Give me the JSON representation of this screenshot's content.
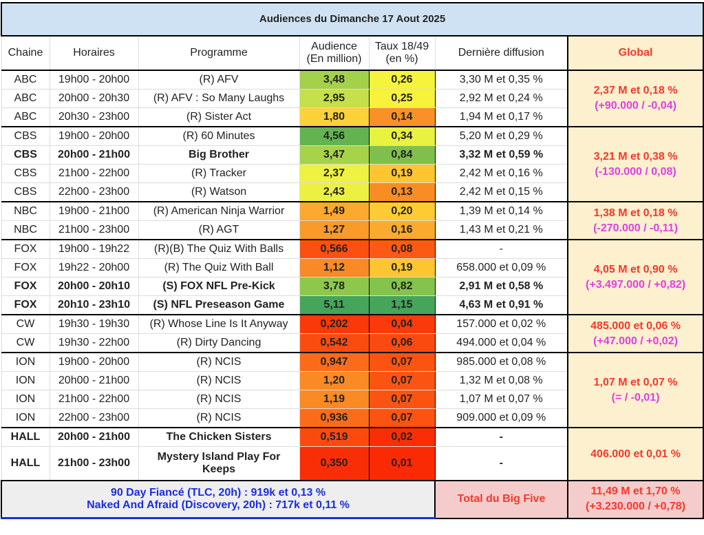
{
  "title": "Audiences du Dimanche 17 Aout 2025",
  "headers": {
    "chaine": "Chaine",
    "horaires": "Horaires",
    "programme": "Programme",
    "audience": "Audience (En million)",
    "taux": "Taux 18/49 (en %)",
    "derniere": "Dernière diffusion",
    "global": "Global"
  },
  "groups": [
    {
      "global": "2,37 M et 0,18 %",
      "delta": "(+90.000 / -0,04)",
      "rows": [
        {
          "chaine": "ABC",
          "horaires": "19h00 - 20h00",
          "programme": "(R) AFV",
          "audience": "3,48",
          "taux": "0,26",
          "derniere": "3,30 M et 0,35 %",
          "aud_color": "#a4d14a",
          "taux_color": "#f6f33c"
        },
        {
          "chaine": "ABC",
          "horaires": "20h00 - 20h30",
          "programme": "(R) AFV : So Many Laughs",
          "audience": "2,95",
          "taux": "0,25",
          "derniere": "2,92 M et 0,24 %",
          "aud_color": "#c5e04a",
          "taux_color": "#f8f23d"
        },
        {
          "chaine": "ABC",
          "horaires": "20h30 - 23h00",
          "programme": "(R) Sister Act",
          "audience": "1,80",
          "taux": "0,14",
          "derniere": "1,94 M et 0,17 %",
          "aud_color": "#fdd13a",
          "taux_color": "#f99028"
        }
      ]
    },
    {
      "global": "3,21 M et 0,38 %",
      "delta": "(-130.000 / 0,08)",
      "rows": [
        {
          "chaine": "CBS",
          "horaires": "19h00 - 20h00",
          "programme": "(R) 60 Minutes",
          "audience": "4,56",
          "taux": "0,34",
          "derniere": "5,20 M et 0,29 %",
          "aud_color": "#63b350",
          "taux_color": "#e9f141"
        },
        {
          "chaine": "CBS",
          "horaires": "20h00 - 21h00",
          "programme": "Big Brother",
          "audience": "3,47",
          "taux": "0,84",
          "derniere": "3,32 M et 0,59 %",
          "aud_color": "#a6d34a",
          "taux_color": "#7fc04c",
          "bold": true
        },
        {
          "chaine": "CBS",
          "horaires": "21h00 - 22h00",
          "programme": "(R) Tracker",
          "audience": "2,37",
          "taux": "0,19",
          "derniere": "2,42 M et 0,16 %",
          "aud_color": "#eef240",
          "taux_color": "#fdc531"
        },
        {
          "chaine": "CBS",
          "horaires": "22h00 - 23h00",
          "programme": "(R) Watson",
          "audience": "2,43",
          "taux": "0,13",
          "derniere": "2,42 M et 0,15 %",
          "aud_color": "#ecf141",
          "taux_color": "#f98d25"
        }
      ]
    },
    {
      "global": "1,38 M et 0,18 %",
      "delta": "(-270.000 / -0,11)",
      "rows": [
        {
          "chaine": "NBC",
          "horaires": "19h00 - 21h00",
          "programme": "(R) American Ninja Warrior",
          "audience": "1,49",
          "taux": "0,20",
          "derniere": "1,39 M et 0,14 %",
          "aud_color": "#fca92f",
          "taux_color": "#fecb33"
        },
        {
          "chaine": "NBC",
          "horaires": "21h00 - 23h00",
          "programme": "(R) AGT",
          "audience": "1,27",
          "taux": "0,16",
          "derniere": "1,43 M et 0,21 %",
          "aud_color": "#f99a2b",
          "taux_color": "#fbaa2f"
        }
      ]
    },
    {
      "global": "4,05 M et 0,90 %",
      "delta": "(+3.497.000 / +0,82)",
      "rows": [
        {
          "chaine": "FOX",
          "horaires": "19h00 - 19h22",
          "programme": "(R)(B) The Quiz With Balls",
          "audience": "0,566",
          "taux": "0,08",
          "derniere": "-",
          "aud_color": "#fb5010",
          "taux_color": "#fb5a14"
        },
        {
          "chaine": "FOX",
          "horaires": "19h22 - 20h00",
          "programme": "(R) The Quiz With Ball",
          "audience": "1,12",
          "taux": "0,19",
          "derniere": "658.000 et 0,09 %",
          "aud_color": "#f98a26",
          "taux_color": "#fdc531"
        },
        {
          "chaine": "FOX",
          "horaires": "20h00 - 20h10",
          "programme": "(S) FOX NFL Pre-Kick",
          "audience": "3,78",
          "taux": "0,82",
          "derniere": "2,91 M et 0,58 %",
          "aud_color": "#8ec84b",
          "taux_color": "#84c34c",
          "bold": true
        },
        {
          "chaine": "FOX",
          "horaires": "20h10 - 23h10",
          "programme": "(S) NFL Preseason Game",
          "audience": "5,11",
          "taux": "1,15",
          "derniere": "4,63 M et 0,91 %",
          "aud_color": "#45a55a",
          "taux_color": "#45a55a",
          "bold": true
        }
      ]
    },
    {
      "global": "485.000 et 0,06 %",
      "delta": "(+47.000 / +0,02)",
      "rows": [
        {
          "chaine": "CW",
          "horaires": "19h30 - 19h30",
          "programme": "(R) Whose Line Is It Anyway",
          "audience": "0,202",
          "taux": "0,04",
          "derniere": "157.000 et 0,02 %",
          "aud_color": "#fa3808",
          "taux_color": "#fa3a0a"
        },
        {
          "chaine": "CW",
          "horaires": "19h30 - 22h00",
          "programme": "(R) Dirty Dancing",
          "audience": "0,542",
          "taux": "0,06",
          "derniere": "494.000 et 0,04 %",
          "aud_color": "#fb4c10",
          "taux_color": "#fb4a10"
        }
      ]
    },
    {
      "global": "1,07 M et 0,07 %",
      "delta": "(= / -0,01)",
      "rows": [
        {
          "chaine": "ION",
          "horaires": "19h00 - 20h00",
          "programme": "(R) NCIS",
          "audience": "0,947",
          "taux": "0,07",
          "derniere": "985.000 et 0,08 %",
          "aud_color": "#fb6c1a",
          "taux_color": "#fb5412"
        },
        {
          "chaine": "ION",
          "horaires": "20h00 - 21h00",
          "programme": "(R) NCIS",
          "audience": "1,20",
          "taux": "0,07",
          "derniere": "1,32 M et 0,08 %",
          "aud_color": "#fa8a24",
          "taux_color": "#fb5412"
        },
        {
          "chaine": "ION",
          "horaires": "21h00 - 22h00",
          "programme": "(R) NCIS",
          "audience": "1,19",
          "taux": "0,07",
          "derniere": "1,07 M et 0,07 %",
          "aud_color": "#fa8a24",
          "taux_color": "#fb5412"
        },
        {
          "chaine": "ION",
          "horaires": "22h00 - 23h00",
          "programme": "(R) NCIS",
          "audience": "0,936",
          "taux": "0,07",
          "derniere": "909.000 et 0,09 %",
          "aud_color": "#fb6c1a",
          "taux_color": "#fb5412"
        }
      ]
    },
    {
      "global": "406.000 et 0,01 %",
      "rows": [
        {
          "chaine": "HALL",
          "horaires": "20h00 - 21h00",
          "programme": "The Chicken Sisters",
          "audience": "0,519",
          "taux": "0,02",
          "derniere": "-",
          "aud_color": "#fb4a10",
          "taux_color": "#fa2e06",
          "bold": true
        },
        {
          "chaine": "HALL",
          "horaires": "21h00 - 23h00",
          "programme": "Mystery Island Play For Keeps",
          "audience": "0,350",
          "taux": "0,01",
          "derniere": "-",
          "aud_color": "#fa2e06",
          "taux_color": "#fa2a04",
          "bold": true,
          "tall": true
        }
      ]
    }
  ],
  "footer": {
    "others": [
      "90 Day Fiancé (TLC, 20h) : 919k et 0,13 %",
      "Naked And Afraid (Discovery, 20h) : 717k et 0,11 %"
    ],
    "big_five_label": "Total du Big Five",
    "big_five_value": "11,49 M et 1,70 %",
    "big_five_delta": "(+3.230.000 / +0,78)"
  }
}
